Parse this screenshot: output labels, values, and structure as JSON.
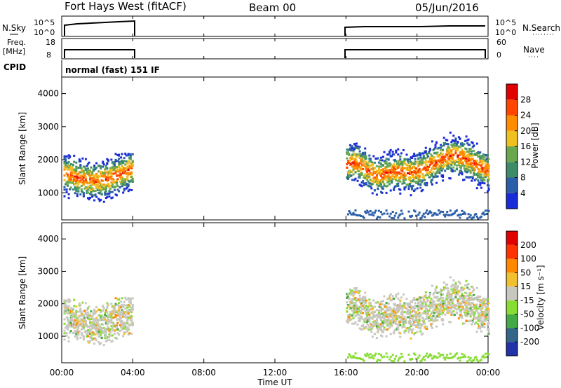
{
  "header": {
    "station": "Fort Hays West (fitACF)",
    "beam": "Beam 00",
    "date": "05/Jun/2016"
  },
  "panels": {
    "nsky": {
      "left_label": "N.Sky",
      "right_label": "N.Search",
      "left_ticks": [
        "10^5",
        "10^0"
      ],
      "right_ticks": [
        "10^5",
        "10^0"
      ]
    },
    "freq": {
      "left_label_1": "Freq.",
      "left_label_2": "[MHz]",
      "right_label": "Nave",
      "left_ticks": [
        "18",
        "8"
      ],
      "right_ticks": [
        "60",
        "0"
      ]
    },
    "cpid": {
      "label": "CPID",
      "text": "normal (fast) 151 IF"
    }
  },
  "chart_data": [
    {
      "type": "heatmap",
      "title": "",
      "xlabel": "Time UT",
      "ylabel": "Slant Range [km]",
      "x_range_hours": [
        0,
        24
      ],
      "xticks": [
        "00:00",
        "04:00",
        "08:00",
        "12:00",
        "16:00",
        "20:00",
        "00:00"
      ],
      "ylim": [
        180,
        4500
      ],
      "yticks": [
        "1000",
        "2000",
        "3000",
        "4000"
      ],
      "colorbar": {
        "label": "Power [dB]",
        "ticks": [
          "4",
          "8",
          "12",
          "16",
          "20",
          "24",
          "28"
        ],
        "colors": [
          "#1a2bd8",
          "#2a5ea8",
          "#3c8c6a",
          "#6aa84f",
          "#f0c020",
          "#ff8c00",
          "#ff4500",
          "#e00000"
        ]
      },
      "data_segments_hours": [
        [
          0.1,
          4.0
        ],
        [
          16.0,
          24.0
        ]
      ]
    },
    {
      "type": "heatmap",
      "title": "",
      "xlabel": "Time UT",
      "ylabel": "Slant Range [km]",
      "x_range_hours": [
        0,
        24
      ],
      "xticks": [
        "00:00",
        "04:00",
        "08:00",
        "12:00",
        "16:00",
        "20:00",
        "00:00"
      ],
      "ylim": [
        180,
        4500
      ],
      "yticks": [
        "1000",
        "2000",
        "3000",
        "4000"
      ],
      "colorbar": {
        "label": "Velocity [m s⁻¹]",
        "ticks": [
          "200",
          "100",
          "50",
          "15",
          "-15",
          "-50",
          "-100",
          "-200"
        ],
        "colors": [
          "#2233aa",
          "#336688",
          "#44aa44",
          "#88dd33",
          "#c8c8c0",
          "#f0c030",
          "#ff8800",
          "#ff3300",
          "#e00000"
        ]
      },
      "data_segments_hours": [
        [
          0.1,
          4.0
        ],
        [
          16.0,
          24.0
        ]
      ]
    }
  ]
}
